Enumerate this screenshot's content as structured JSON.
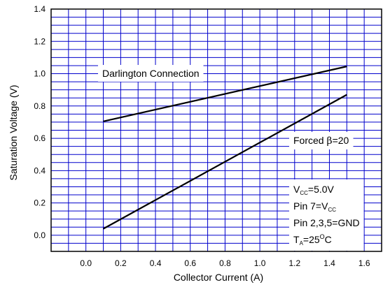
{
  "chart_data": {
    "type": "line",
    "xlabel": "Collector Current (A)",
    "ylabel": "Saturation Voltage (V)",
    "xlim": [
      -0.2,
      1.7
    ],
    "ylim": [
      -0.1,
      1.4
    ],
    "x_ticks": [
      "0.0",
      "0.2",
      "0.4",
      "0.6",
      "0.8",
      "1.0",
      "1.2",
      "1.4",
      "1.6"
    ],
    "y_ticks": [
      "0.0",
      "0.2",
      "0.4",
      "0.6",
      "0.8",
      "1.0",
      "1.2",
      "1.4"
    ],
    "grid": true,
    "grid_color": "#0000cc",
    "series": [
      {
        "name": "Darlington Connection",
        "x": [
          0.1,
          1.5
        ],
        "y": [
          0.705,
          1.045
        ],
        "color": "#000000"
      },
      {
        "name": "Forced β=20",
        "x": [
          0.1,
          1.5
        ],
        "y": [
          0.04,
          0.87
        ],
        "color": "#000000"
      }
    ],
    "annotations": {
      "darlington": "Darlington Connection",
      "forced_prefix": "Forced ",
      "forced_beta": "β",
      "forced_suffix": "=20",
      "vcc_main": "V",
      "vcc_sub": "CC",
      "vcc_value": "=5.0V",
      "pin7_prefix": "Pin 7=V",
      "pin7_sub": "CC",
      "pins_gnd": "Pin 2,3,5=GND",
      "ta_main": "T",
      "ta_sub": "A",
      "ta_eq": "=25",
      "ta_deg": "O",
      "ta_unit": "C"
    }
  }
}
